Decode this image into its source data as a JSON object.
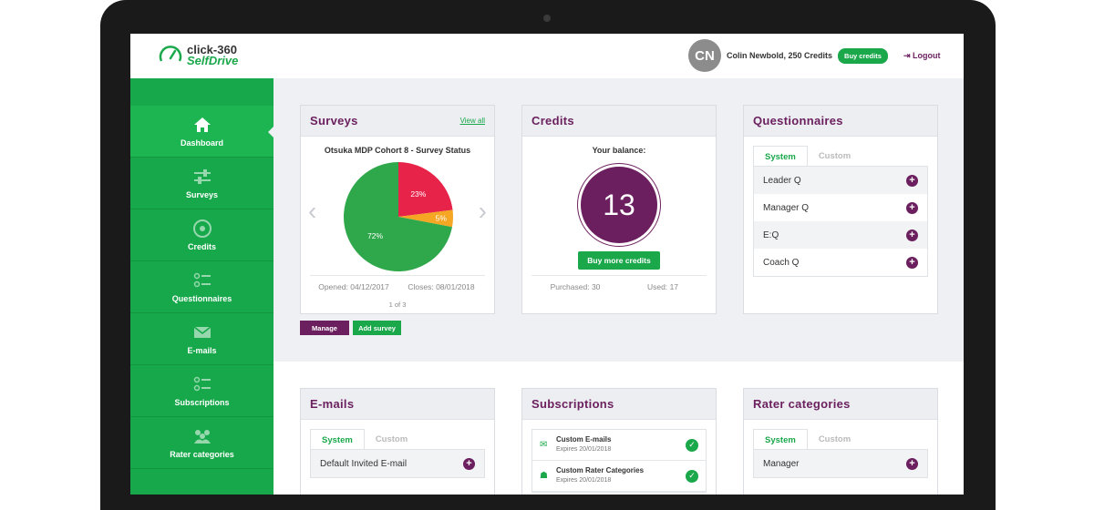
{
  "brand": {
    "line1": "click-360",
    "line2": "SelfDrive"
  },
  "header": {
    "avatar_initials": "CN",
    "user_name": "Colin Newbold",
    "credits_text": ", 250 Credits",
    "buy_credits": "Buy credits",
    "logout": "Logout"
  },
  "sidebar": {
    "items": [
      {
        "label": "Dashboard",
        "icon": "home-icon"
      },
      {
        "label": "Surveys",
        "icon": "sliders-icon"
      },
      {
        "label": "Credits",
        "icon": "coin-icon"
      },
      {
        "label": "Questionnaires",
        "icon": "checklist-icon"
      },
      {
        "label": "E-mails",
        "icon": "envelope-icon"
      },
      {
        "label": "Subscriptions",
        "icon": "checklist-icon"
      },
      {
        "label": "Rater categories",
        "icon": "people-icon"
      }
    ]
  },
  "surveys": {
    "title": "Surveys",
    "view_all": "View all",
    "chart_title": "Otsuka MDP Cohort 8 - Survey Status",
    "opened_label": "Opened:",
    "opened_value": "04/12/2017",
    "closes_label": "Closes:",
    "closes_value": "08/01/2018",
    "pager": "1 of 3",
    "manage": "Manage",
    "add_survey": "Add survey"
  },
  "chart_data": {
    "type": "pie",
    "title": "Otsuka MDP Cohort 8 - Survey Status",
    "labels": [
      "23%",
      "5%",
      "72%"
    ],
    "values": [
      23,
      5,
      72
    ],
    "colors": [
      "#e8234a",
      "#f5a623",
      "#2ea84a"
    ]
  },
  "credits": {
    "title": "Credits",
    "balance_label": "Your balance:",
    "balance": "13",
    "buy_more": "Buy more credits",
    "purchased_label": "Purchased:",
    "purchased_value": "30",
    "used_label": "Used:",
    "used_value": "17"
  },
  "questionnaires": {
    "title": "Questionnaires",
    "tab_system": "System",
    "tab_custom": "Custom",
    "items": [
      "Leader Q",
      "Manager Q",
      "E:Q",
      "Coach Q"
    ]
  },
  "emails": {
    "title": "E-mails",
    "tab_system": "System",
    "tab_custom": "Custom",
    "items": [
      "Default Invited E-mail"
    ]
  },
  "subscriptions": {
    "title": "Subscriptions",
    "items": [
      {
        "name": "Custom E-mails",
        "expires": "Expires 20/01/2018"
      },
      {
        "name": "Custom Rater Categories",
        "expires": "Expires 20/01/2018"
      }
    ]
  },
  "rater": {
    "title": "Rater categories",
    "tab_system": "System",
    "tab_custom": "Custom",
    "items": [
      "Manager"
    ]
  },
  "colors": {
    "brand_green": "#1aa84b",
    "brand_purple": "#6b1f5e"
  }
}
